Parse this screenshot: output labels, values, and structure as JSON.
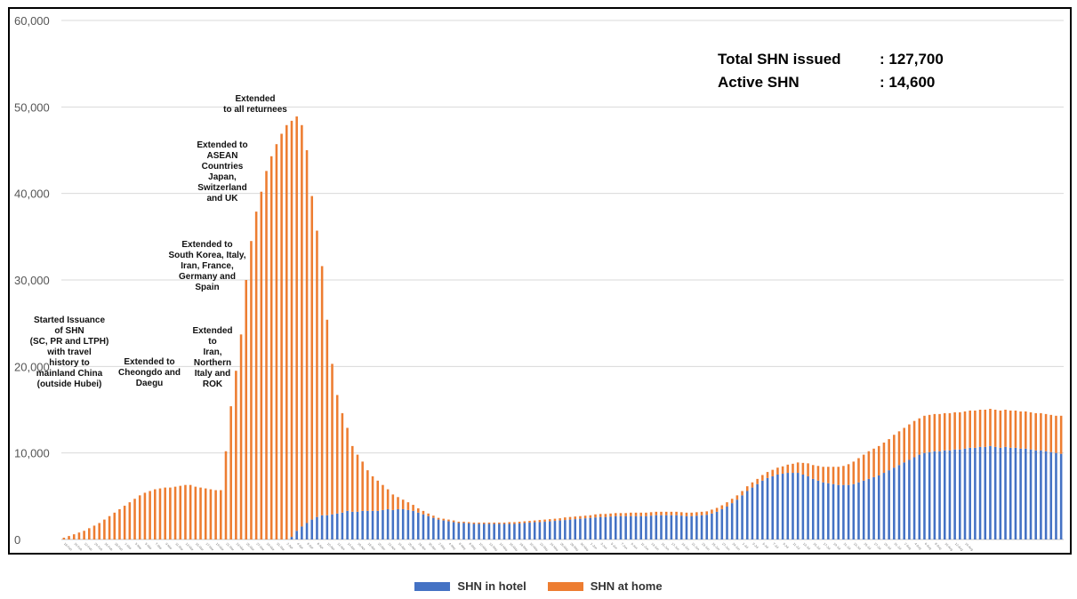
{
  "chart_data": {
    "type": "bar",
    "stacked": true,
    "ylim": [
      0,
      60000
    ],
    "yticks": [
      0,
      10000,
      20000,
      30000,
      40000,
      50000,
      60000
    ],
    "ytick_labels": [
      "0",
      "10,000",
      "20,000",
      "30,000",
      "40,000",
      "50,000",
      "60,000"
    ],
    "x_start_date": "2020-02-19",
    "x_tick_labels": [
      "18-Feb",
      "20-Feb",
      "22-Feb",
      "24-Feb",
      "26-Feb",
      "28-Feb",
      "1-Mar",
      "3-Mar",
      "5-Mar",
      "7-Mar",
      "9-Mar",
      "11-Mar",
      "13-Mar",
      "15-Mar",
      "17-Mar",
      "19-Mar",
      "21-Mar",
      "23-Mar",
      "25-Mar",
      "27-Mar",
      "29-Mar",
      "31-Mar",
      "2-Apr",
      "4-Apr",
      "6-Apr",
      "8-Apr",
      "10-Apr",
      "12-Apr",
      "14-Apr",
      "16-Apr",
      "18-Apr",
      "20-Apr",
      "22-Apr",
      "24-Apr",
      "26-Apr",
      "28-Apr",
      "30-Apr",
      "2-May",
      "4-May",
      "6-May",
      "8-May",
      "10-May",
      "12-May",
      "14-May",
      "16-May",
      "18-May",
      "20-May",
      "22-May",
      "24-May",
      "26-May",
      "28-May",
      "30-May",
      "1-Jun",
      "3-Jun",
      "5-Jun",
      "7-Jun",
      "9-Jun",
      "11-Jun",
      "13-Jun",
      "15-Jun",
      "17-Jun",
      "19-Jun",
      "21-Jun",
      "23-Jun",
      "25-Jun",
      "27-Jun",
      "29-Jun",
      "1-Jul",
      "3-Jul",
      "5-Jul",
      "7-Jul",
      "9-Jul",
      "11-Jul",
      "13-Jul",
      "15-Jul",
      "17-Jul",
      "19-Jul",
      "21-Jul",
      "23-Jul",
      "25-Jul",
      "27-Jul",
      "29-Jul",
      "31-Jul",
      "2-Aug",
      "4-Aug",
      "6-Aug",
      "8-Aug",
      "10-Aug",
      "12-Aug",
      "14-Aug"
    ],
    "series": [
      {
        "name": "SHN in hotel",
        "color": "#4472C4",
        "values": [
          0,
          0,
          0,
          0,
          0,
          0,
          0,
          0,
          0,
          0,
          0,
          0,
          0,
          0,
          0,
          0,
          0,
          0,
          0,
          0,
          0,
          0,
          0,
          0,
          0,
          0,
          0,
          0,
          0,
          0,
          0,
          0,
          0,
          0,
          0,
          0,
          0,
          0,
          0,
          0,
          0,
          0,
          0,
          0,
          0,
          300,
          1000,
          1500,
          1900,
          2300,
          2600,
          2800,
          2800,
          2900,
          3000,
          3100,
          3300,
          3200,
          3200,
          3300,
          3300,
          3300,
          3300,
          3400,
          3500,
          3400,
          3500,
          3500,
          3400,
          3300,
          3100,
          2900,
          2700,
          2500,
          2300,
          2200,
          2100,
          2000,
          1900,
          1900,
          1850,
          1800,
          1800,
          1800,
          1800,
          1800,
          1800,
          1800,
          1800,
          1800,
          1850,
          1900,
          1950,
          2000,
          2000,
          2050,
          2100,
          2150,
          2200,
          2250,
          2300,
          2350,
          2400,
          2450,
          2500,
          2550,
          2600,
          2600,
          2650,
          2700,
          2700,
          2700,
          2700,
          2700,
          2700,
          2700,
          2750,
          2800,
          2800,
          2800,
          2800,
          2800,
          2750,
          2700,
          2700,
          2750,
          2800,
          2850,
          3000,
          3200,
          3500,
          3800,
          4200,
          4600,
          5100,
          5600,
          6000,
          6400,
          6800,
          7100,
          7300,
          7500,
          7600,
          7700,
          7700,
          7700,
          7500,
          7300,
          7000,
          6800,
          6600,
          6500,
          6400,
          6300,
          6300,
          6300,
          6400,
          6600,
          6800,
          7000,
          7200,
          7400,
          7700,
          8000,
          8300,
          8600,
          8900,
          9200,
          9500,
          9800,
          10000,
          10100,
          10200,
          10200,
          10300,
          10300,
          10400,
          10400,
          10500,
          10600,
          10600,
          10700,
          10700,
          10800,
          10700,
          10600,
          10700,
          10600,
          10600,
          10500,
          10500,
          10400,
          10300,
          10300,
          10200,
          10100,
          10000,
          9900
        ]
      },
      {
        "name": "SHN at home",
        "color": "#ED7D31",
        "values": [
          200,
          400,
          600,
          800,
          1000,
          1300,
          1600,
          1900,
          2300,
          2700,
          3100,
          3500,
          3900,
          4300,
          4700,
          5100,
          5400,
          5600,
          5800,
          5900,
          6000,
          6000,
          6100,
          6200,
          6300,
          6300,
          6100,
          6000,
          5900,
          5800,
          5700,
          5700,
          10200,
          15400,
          19500,
          23700,
          30000,
          34500,
          37900,
          40200,
          42600,
          44300,
          45700,
          46900,
          47900,
          48100,
          47900,
          46400,
          43100,
          37400,
          33100,
          28800,
          22600,
          17400,
          13700,
          11500,
          9600,
          7600,
          6600,
          5700,
          4700,
          4000,
          3500,
          2900,
          2300,
          1800,
          1400,
          1100,
          900,
          700,
          500,
          400,
          300,
          250,
          200,
          200,
          200,
          200,
          150,
          150,
          150,
          150,
          150,
          150,
          150,
          150,
          150,
          150,
          200,
          200,
          200,
          200,
          200,
          200,
          250,
          250,
          250,
          250,
          250,
          300,
          300,
          300,
          300,
          300,
          300,
          350,
          350,
          350,
          350,
          350,
          350,
          350,
          400,
          400,
          400,
          400,
          400,
          400,
          400,
          400,
          400,
          400,
          400,
          400,
          400,
          400,
          400,
          400,
          450,
          450,
          450,
          500,
          500,
          500,
          500,
          550,
          600,
          600,
          650,
          700,
          750,
          800,
          850,
          950,
          1050,
          1200,
          1350,
          1500,
          1600,
          1700,
          1800,
          1900,
          2000,
          2100,
          2200,
          2400,
          2600,
          2800,
          3000,
          3200,
          3300,
          3400,
          3500,
          3600,
          3800,
          3900,
          4000,
          4100,
          4200,
          4200,
          4300,
          4300,
          4300,
          4300,
          4300,
          4300,
          4300,
          4300,
          4300,
          4300,
          4300,
          4300,
          4300,
          4300,
          4300,
          4300,
          4300,
          4300,
          4300,
          4300,
          4300,
          4300,
          4300,
          4300,
          4300,
          4300,
          4300,
          4400,
          4500,
          4600,
          4600
        ]
      }
    ],
    "stats": [
      {
        "label": "Total SHN issued",
        "value": ": 127,700"
      },
      {
        "label": "Active SHN",
        "value": ": 14,600"
      }
    ],
    "annotations": [
      {
        "lines": [
          "Started Issuance",
          "of SHN",
          "(SC, PR and LTPH)",
          "with travel",
          "history to",
          "mainland China",
          "(outside Hubei)"
        ]
      },
      {
        "lines": [
          "Extended to",
          "Cheongdo and",
          "Daegu"
        ]
      },
      {
        "lines": [
          "Extended",
          "to",
          "Iran,",
          "Northern",
          "Italy and",
          "ROK"
        ]
      },
      {
        "lines": [
          "Extended to",
          "South Korea, Italy,",
          "Iran, France,",
          "Germany and",
          "Spain"
        ]
      },
      {
        "lines": [
          "Extended to",
          "ASEAN",
          "Countries",
          "Japan,",
          "Switzerland",
          "and UK"
        ]
      },
      {
        "lines": [
          "Extended",
          "to all returnees"
        ]
      }
    ],
    "legend": {
      "position": "bottom-center"
    },
    "grid": true
  }
}
